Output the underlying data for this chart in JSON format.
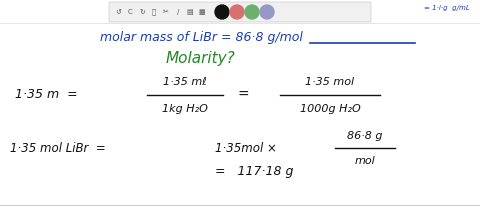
{
  "bg_color": "#ffffff",
  "title_color": "#1a3db5",
  "molarity_color": "#228822",
  "text_color": "#111111",
  "toolbar_bg": "#f0f0f0",
  "toolbar_border": "#cccccc",
  "circle_colors": [
    "#111111",
    "#d97070",
    "#6db06d",
    "#9898c8"
  ],
  "top_right_text": "= 1·l·g  g/mL",
  "molar_text": "molar mass of LiBr = 86·8 g/mol",
  "molarity_text": "Molarity?",
  "row1_left": "1·35 m  =",
  "frac1_num": "1·35 mℓ",
  "frac1_den": "1kg H₂O",
  "frac1_eq": "=",
  "frac2_num": "1·35 mol",
  "frac2_den": "1000g H₂O",
  "row2_left": "1·35 mol LiBr  =",
  "row2_mid": "1·35mol ×",
  "frac3_num": "86·8 g",
  "frac3_den": "mol",
  "row3_result": "=   117·18 g",
  "figsize": [
    4.8,
    2.12
  ],
  "dpi": 100
}
